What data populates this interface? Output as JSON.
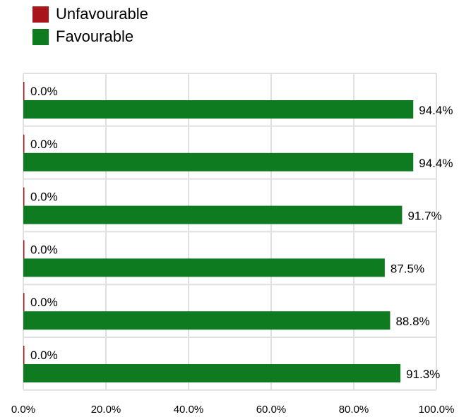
{
  "chart_data": {
    "type": "bar",
    "orientation": "horizontal",
    "title": "",
    "xlabel": "",
    "ylabel": "",
    "categories": [
      "",
      "",
      "",
      "",
      "",
      ""
    ],
    "series": [
      {
        "name": "Unfavourable",
        "color": "#a8161b",
        "values": [
          0.0,
          0.0,
          0.0,
          0.0,
          0.0,
          0.0
        ],
        "labels": [
          "0.0%",
          "0.0%",
          "0.0%",
          "0.0%",
          "0.0%",
          "0.0%"
        ]
      },
      {
        "name": "Favourable",
        "color": "#0f7b20",
        "values": [
          94.4,
          94.4,
          91.7,
          87.5,
          88.8,
          91.3
        ],
        "labels": [
          "94.4%",
          "94.4%",
          "91.7%",
          "87.5%",
          "88.8%",
          "91.3%"
        ]
      }
    ],
    "xlim": [
      0,
      100
    ],
    "xticks": [
      "0.0%",
      "20.0%",
      "40.0%",
      "60.0%",
      "80.0%",
      "100.0%"
    ],
    "grid": true,
    "legend_position": "top-left"
  }
}
